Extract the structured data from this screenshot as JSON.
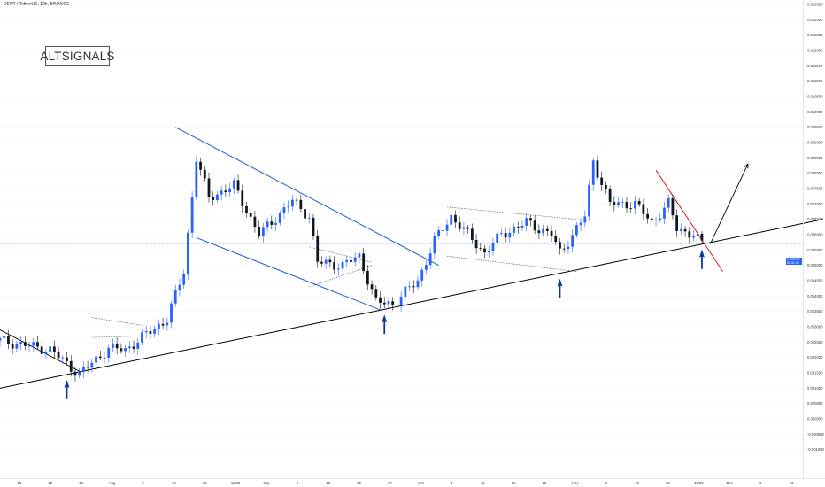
{
  "header": {
    "symbol_title": "DENT / TetherUS, 12h, BINANCE"
  },
  "logo": {
    "text": "ALTSIGNALS"
  },
  "price_badge": {
    "value": "0.005700",
    "sub": "00:31:33"
  },
  "colors": {
    "up": "#2962ff",
    "down": "#131722",
    "channel": "#1e5bd0",
    "trend": "#000000",
    "resistance": "#d01e1e",
    "arrow": "#0d3796",
    "last_price_line": "#2962ff"
  },
  "chart_data": {
    "type": "candlestick",
    "title": "DENT / TetherUS, 12h, BINANCE",
    "ylim": [
      -0.0015,
      0.0135
    ],
    "yticks": [
      "0.013500",
      "0.013000",
      "0.012500",
      "0.012000",
      "0.011500",
      "0.011000",
      "0.010500",
      "0.010000",
      "0.009500",
      "0.009000",
      "0.008500",
      "0.008000",
      "0.007500",
      "0.007000",
      "0.006500",
      "0.006000",
      "0.005500",
      "0.005000",
      "0.004500",
      "0.004000",
      "0.003500",
      "0.003000",
      "0.002500",
      "0.002000",
      "0.001500",
      "0.001000",
      "0.000500",
      "0.000000",
      "-0.000500",
      "-0.001000"
    ],
    "xticks": [
      "12",
      "19",
      "26",
      "Aug",
      "9",
      "16",
      "23",
      "12:00",
      "Sep",
      "6",
      "13",
      "20",
      "27",
      "Oct",
      "4",
      "11",
      "18",
      "25",
      "Nov",
      "8",
      "15",
      "22",
      "12:00",
      "Dec",
      "6",
      "13"
    ],
    "last_price": 0.0057,
    "price_path": [
      {
        "t": 0,
        "v": 0.00255
      },
      {
        "t": 12,
        "v": 0.00225
      },
      {
        "t": 19,
        "v": 0.00145
      },
      {
        "t": 26,
        "v": 0.0023
      },
      {
        "t": 30,
        "v": 0.00225
      },
      {
        "t": 40,
        "v": 0.00325
      },
      {
        "t": 44,
        "v": 0.0048
      },
      {
        "t": 47,
        "v": 0.0085
      },
      {
        "t": 50,
        "v": 0.0072
      },
      {
        "t": 56,
        "v": 0.0076
      },
      {
        "t": 62,
        "v": 0.006
      },
      {
        "t": 70,
        "v": 0.0071
      },
      {
        "t": 74,
        "v": 0.0066
      },
      {
        "t": 76,
        "v": 0.0051
      },
      {
        "t": 82,
        "v": 0.005
      },
      {
        "t": 86,
        "v": 0.0053
      },
      {
        "t": 90,
        "v": 0.0038
      },
      {
        "t": 94,
        "v": 0.00375
      },
      {
        "t": 100,
        "v": 0.0045
      },
      {
        "t": 104,
        "v": 0.0058
      },
      {
        "t": 108,
        "v": 0.0066
      },
      {
        "t": 112,
        "v": 0.006
      },
      {
        "t": 116,
        "v": 0.0054
      },
      {
        "t": 120,
        "v": 0.006
      },
      {
        "t": 126,
        "v": 0.0064
      },
      {
        "t": 132,
        "v": 0.006
      },
      {
        "t": 134,
        "v": 0.0054
      },
      {
        "t": 140,
        "v": 0.0066
      },
      {
        "t": 142,
        "v": 0.0084
      },
      {
        "t": 146,
        "v": 0.007
      },
      {
        "t": 152,
        "v": 0.007
      },
      {
        "t": 156,
        "v": 0.0064
      },
      {
        "t": 160,
        "v": 0.007
      },
      {
        "t": 162,
        "v": 0.0062
      },
      {
        "t": 166,
        "v": 0.006
      },
      {
        "t": 168,
        "v": 0.0057
      }
    ],
    "annotations": {
      "support_trendline": [
        {
          "t": 0,
          "v": 0.001
        },
        {
          "t": 197,
          "v": 0.0065
        }
      ],
      "early_downtrend": [
        {
          "t": 0,
          "v": 0.0029
        },
        {
          "t": 19,
          "v": 0.00155
        }
      ],
      "channel_upper": [
        {
          "t": 42,
          "v": 0.0095
        },
        {
          "t": 105,
          "v": 0.005
        }
      ],
      "channel_lower": [
        {
          "t": 47,
          "v": 0.0059
        },
        {
          "t": 91,
          "v": 0.00355
        }
      ],
      "resistance_line": [
        {
          "t": 157,
          "v": 0.0081
        },
        {
          "t": 173,
          "v": 0.0048
        }
      ],
      "projection_arrow": [
        {
          "t": 170,
          "v": 0.0057
        },
        {
          "t": 179,
          "v": 0.0083
        }
      ],
      "support_arrows_t": [
        16,
        92,
        134,
        168
      ]
    }
  }
}
